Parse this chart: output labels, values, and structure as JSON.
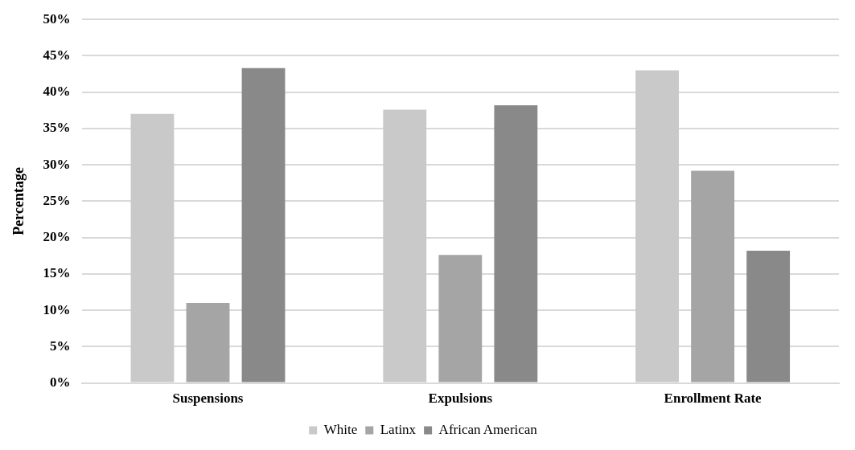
{
  "chart_data": {
    "type": "bar",
    "ylabel": "Percentage",
    "categories": [
      "Suspensions",
      "Expulsions",
      "Enrollment Rate"
    ],
    "series": [
      {
        "name": "White",
        "color": "#c9c9c9",
        "values": [
          37.0,
          37.6,
          43.0
        ]
      },
      {
        "name": "Latinx",
        "color": "#a5a5a5",
        "values": [
          11.0,
          17.6,
          29.2
        ]
      },
      {
        "name": "African American",
        "color": "#898989",
        "values": [
          43.3,
          38.2,
          18.2
        ]
      }
    ],
    "ylim": [
      0,
      50
    ],
    "yticks": [
      {
        "value": 0,
        "label": "0%"
      },
      {
        "value": 5,
        "label": "5%"
      },
      {
        "value": 10,
        "label": "10%"
      },
      {
        "value": 15,
        "label": "15%"
      },
      {
        "value": 20,
        "label": "20%"
      },
      {
        "value": 25,
        "label": "25%"
      },
      {
        "value": 30,
        "label": "30%"
      },
      {
        "value": 35,
        "label": "35%"
      },
      {
        "value": 40,
        "label": "40%"
      },
      {
        "value": 45,
        "label": "45%"
      },
      {
        "value": 50,
        "label": "50%"
      }
    ],
    "grid": "y",
    "legend": "bottom"
  }
}
